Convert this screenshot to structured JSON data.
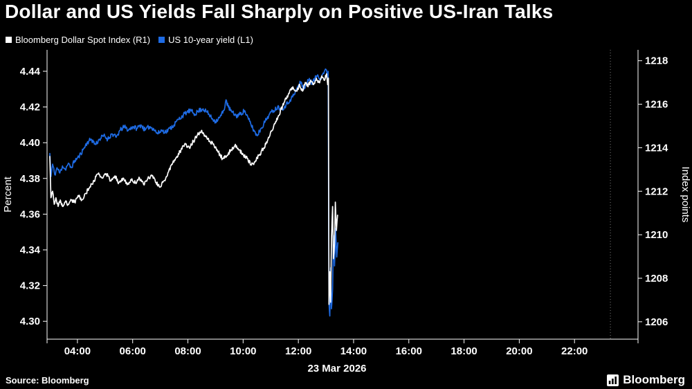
{
  "title": "Dollar and US Yields Fall Sharply on Positive US-Iran Talks",
  "legend": [
    {
      "label": "Bloomberg Dollar Spot Index (R1)",
      "color": "#ffffff"
    },
    {
      "label": "US 10-year yield (L1)",
      "color": "#1e6be4"
    }
  ],
  "footer": {
    "source": "Source: Bloomberg",
    "brand": "Bloomberg"
  },
  "colors": {
    "background": "#000000",
    "text": "#ffffff",
    "axis": "#ffffff",
    "blue": "#1e6be4"
  },
  "chart_data": {
    "type": "line",
    "title": "Dollar and US Yields Fall Sharply on Positive US-Iran Talks",
    "x_axis": {
      "kind": "time",
      "min_hour": 2.9,
      "max_hour": 24.3,
      "tick_values": [
        4,
        6,
        8,
        10,
        12,
        14,
        16,
        18,
        20,
        22
      ],
      "tick_labels": [
        "04:00",
        "06:00",
        "08:00",
        "10:00",
        "12:00",
        "14:00",
        "16:00",
        "18:00",
        "20:00",
        "22:00"
      ],
      "date_label": "23 Mar 2026",
      "marker_line_hour": 23.3
    },
    "left_axis": {
      "label": "Percent",
      "min": 4.29,
      "max": 4.452,
      "tick_values": [
        4.3,
        4.32,
        4.34,
        4.36,
        4.38,
        4.4,
        4.42,
        4.44
      ],
      "tick_labels": [
        "4.30",
        "4.32",
        "4.34",
        "4.36",
        "4.38",
        "4.40",
        "4.42",
        "4.44"
      ]
    },
    "right_axis": {
      "label": "Index points",
      "min": 1205.2,
      "max": 1218.5,
      "tick_values": [
        1206,
        1208,
        1210,
        1212,
        1214,
        1216,
        1218
      ],
      "tick_labels": [
        "1206",
        "1208",
        "1210",
        "1212",
        "1214",
        "1216",
        "1218"
      ]
    },
    "render": {
      "seed": 11,
      "step_hours": 0.02
    },
    "series": [
      {
        "name": "Bloomberg Dollar Spot Index",
        "axis": "right",
        "color": "#ffffff",
        "z": 2,
        "jitter": 0.09,
        "points": [
          [
            3.0,
            1213.6
          ],
          [
            3.04,
            1211.7
          ],
          [
            3.1,
            1212.0
          ],
          [
            3.16,
            1211.4
          ],
          [
            3.22,
            1211.7
          ],
          [
            3.3,
            1211.3
          ],
          [
            3.38,
            1211.6
          ],
          [
            3.46,
            1211.3
          ],
          [
            3.56,
            1211.5
          ],
          [
            3.66,
            1211.4
          ],
          [
            3.78,
            1211.6
          ],
          [
            3.9,
            1211.5
          ],
          [
            4.02,
            1211.8
          ],
          [
            4.16,
            1211.6
          ],
          [
            4.3,
            1211.9
          ],
          [
            4.45,
            1212.2
          ],
          [
            4.6,
            1212.5
          ],
          [
            4.75,
            1212.8
          ],
          [
            4.9,
            1212.6
          ],
          [
            5.05,
            1212.8
          ],
          [
            5.2,
            1212.5
          ],
          [
            5.35,
            1212.7
          ],
          [
            5.5,
            1212.4
          ],
          [
            5.65,
            1212.6
          ],
          [
            5.8,
            1212.3
          ],
          [
            5.95,
            1212.5
          ],
          [
            6.1,
            1212.4
          ],
          [
            6.25,
            1212.6
          ],
          [
            6.4,
            1212.3
          ],
          [
            6.55,
            1212.6
          ],
          [
            6.7,
            1212.7
          ],
          [
            6.85,
            1212.4
          ],
          [
            7.0,
            1212.2
          ],
          [
            7.15,
            1212.5
          ],
          [
            7.3,
            1212.9
          ],
          [
            7.45,
            1213.3
          ],
          [
            7.6,
            1213.6
          ],
          [
            7.75,
            1213.9
          ],
          [
            7.9,
            1214.2
          ],
          [
            8.05,
            1214.0
          ],
          [
            8.2,
            1214.3
          ],
          [
            8.35,
            1214.6
          ],
          [
            8.5,
            1214.8
          ],
          [
            8.65,
            1214.5
          ],
          [
            8.8,
            1214.3
          ],
          [
            8.95,
            1214.1
          ],
          [
            9.1,
            1213.8
          ],
          [
            9.25,
            1213.5
          ],
          [
            9.4,
            1213.6
          ],
          [
            9.55,
            1213.9
          ],
          [
            9.7,
            1214.1
          ],
          [
            9.85,
            1213.9
          ],
          [
            10.0,
            1213.7
          ],
          [
            10.15,
            1213.5
          ],
          [
            10.3,
            1213.2
          ],
          [
            10.45,
            1213.4
          ],
          [
            10.6,
            1213.7
          ],
          [
            10.75,
            1214.0
          ],
          [
            10.9,
            1214.4
          ],
          [
            11.05,
            1214.8
          ],
          [
            11.2,
            1215.2
          ],
          [
            11.35,
            1215.7
          ],
          [
            11.5,
            1216.1
          ],
          [
            11.65,
            1216.5
          ],
          [
            11.8,
            1216.8
          ],
          [
            11.95,
            1216.6
          ],
          [
            12.05,
            1216.9
          ],
          [
            12.15,
            1216.6
          ],
          [
            12.25,
            1217.0
          ],
          [
            12.35,
            1216.8
          ],
          [
            12.45,
            1217.1
          ],
          [
            12.55,
            1216.9
          ],
          [
            12.65,
            1217.2
          ],
          [
            12.75,
            1217.0
          ],
          [
            12.85,
            1217.3
          ],
          [
            12.95,
            1217.1
          ],
          [
            13.02,
            1217.4
          ],
          [
            13.06,
            1216.9
          ],
          [
            13.09,
            1217.2
          ],
          [
            13.11,
            1206.8
          ],
          [
            13.14,
            1208.3
          ],
          [
            13.17,
            1206.9
          ],
          [
            13.2,
            1209.8
          ],
          [
            13.24,
            1211.3
          ],
          [
            13.27,
            1208.9
          ],
          [
            13.31,
            1209.6
          ],
          [
            13.34,
            1211.5
          ],
          [
            13.38,
            1210.2
          ],
          [
            13.42,
            1210.9
          ]
        ]
      },
      {
        "name": "US 10-year yield",
        "axis": "left",
        "color": "#1e6be4",
        "z": 1,
        "jitter": 0.0013,
        "points": [
          [
            3.0,
            4.394
          ],
          [
            3.04,
            4.381
          ],
          [
            3.1,
            4.388
          ],
          [
            3.18,
            4.382
          ],
          [
            3.26,
            4.386
          ],
          [
            3.36,
            4.383
          ],
          [
            3.46,
            4.387
          ],
          [
            3.56,
            4.385
          ],
          [
            3.66,
            4.388
          ],
          [
            3.78,
            4.386
          ],
          [
            3.9,
            4.39
          ],
          [
            4.05,
            4.392
          ],
          [
            4.2,
            4.396
          ],
          [
            4.35,
            4.4
          ],
          [
            4.5,
            4.402
          ],
          [
            4.65,
            4.399
          ],
          [
            4.8,
            4.402
          ],
          [
            4.95,
            4.404
          ],
          [
            5.1,
            4.402
          ],
          [
            5.25,
            4.405
          ],
          [
            5.4,
            4.403
          ],
          [
            5.55,
            4.407
          ],
          [
            5.7,
            4.409
          ],
          [
            5.85,
            4.407
          ],
          [
            6.0,
            4.409
          ],
          [
            6.15,
            4.408
          ],
          [
            6.3,
            4.41
          ],
          [
            6.45,
            4.407
          ],
          [
            6.6,
            4.409
          ],
          [
            6.75,
            4.408
          ],
          [
            6.9,
            4.405
          ],
          [
            7.05,
            4.407
          ],
          [
            7.2,
            4.406
          ],
          [
            7.35,
            4.408
          ],
          [
            7.5,
            4.41
          ],
          [
            7.65,
            4.413
          ],
          [
            7.8,
            4.415
          ],
          [
            7.95,
            4.417
          ],
          [
            8.1,
            4.418
          ],
          [
            8.25,
            4.416
          ],
          [
            8.4,
            4.418
          ],
          [
            8.55,
            4.419
          ],
          [
            8.7,
            4.417
          ],
          [
            8.85,
            4.414
          ],
          [
            9.0,
            4.412
          ],
          [
            9.15,
            4.414
          ],
          [
            9.3,
            4.418
          ],
          [
            9.38,
            4.424
          ],
          [
            9.46,
            4.42
          ],
          [
            9.6,
            4.417
          ],
          [
            9.75,
            4.415
          ],
          [
            9.9,
            4.416
          ],
          [
            10.05,
            4.418
          ],
          [
            10.2,
            4.413
          ],
          [
            10.35,
            4.408
          ],
          [
            10.5,
            4.404
          ],
          [
            10.65,
            4.408
          ],
          [
            10.8,
            4.412
          ],
          [
            10.95,
            4.416
          ],
          [
            11.1,
            4.418
          ],
          [
            11.25,
            4.42
          ],
          [
            11.4,
            4.419
          ],
          [
            11.55,
            4.421
          ],
          [
            11.7,
            4.424
          ],
          [
            11.85,
            4.427
          ],
          [
            12.0,
            4.432
          ],
          [
            12.1,
            4.434
          ],
          [
            12.2,
            4.43
          ],
          [
            12.3,
            4.433
          ],
          [
            12.4,
            4.436
          ],
          [
            12.5,
            4.433
          ],
          [
            12.6,
            4.436
          ],
          [
            12.7,
            4.438
          ],
          [
            12.8,
            4.436
          ],
          [
            12.9,
            4.439
          ],
          [
            13.0,
            4.441
          ],
          [
            13.04,
            4.438
          ],
          [
            13.08,
            4.44
          ],
          [
            13.11,
            4.31
          ],
          [
            13.14,
            4.303
          ],
          [
            13.17,
            4.33
          ],
          [
            13.2,
            4.307
          ],
          [
            13.24,
            4.318
          ],
          [
            13.27,
            4.348
          ],
          [
            13.31,
            4.331
          ],
          [
            13.35,
            4.352
          ],
          [
            13.39,
            4.336
          ],
          [
            13.43,
            4.344
          ]
        ]
      }
    ]
  }
}
